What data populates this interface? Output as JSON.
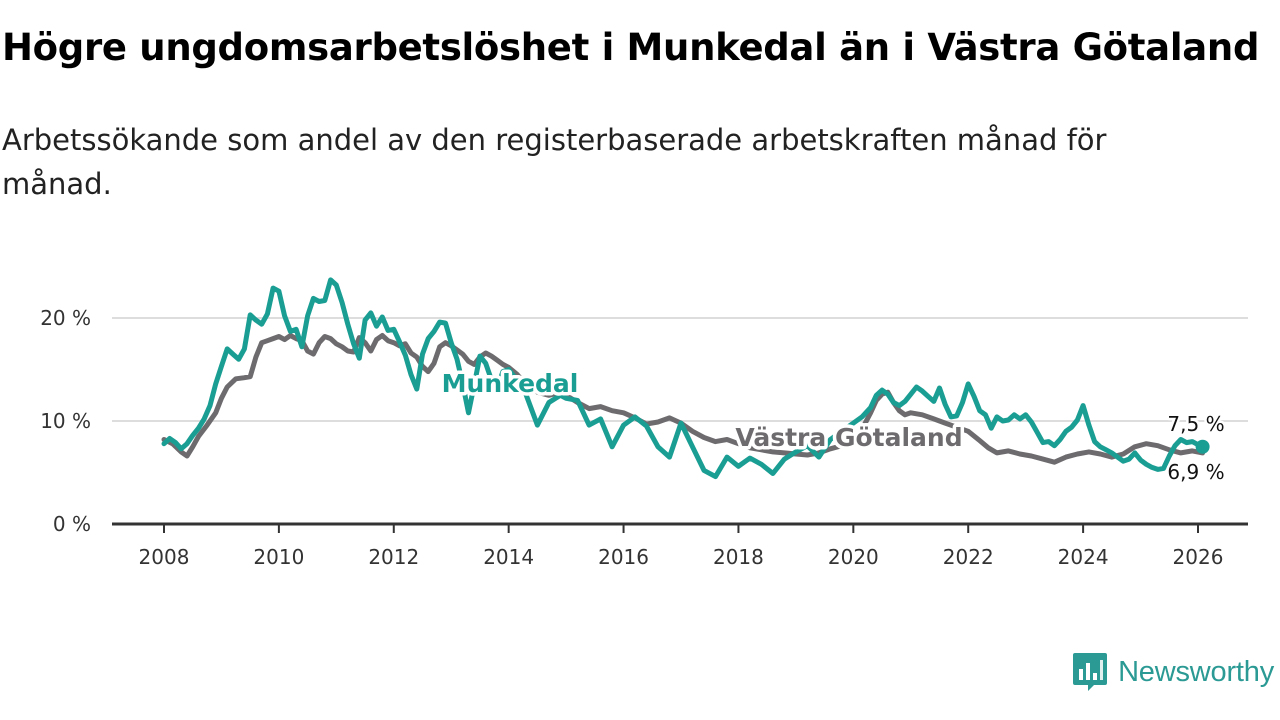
{
  "title": "Högre ungdomsarbetslöshet i Munkedal än i Västra Götaland",
  "subtitle": "Arbetssökande som andel av den registerbaserade arbetskraften månad för månad.",
  "brand": "Newsworthy",
  "colors": {
    "munkedal": "#1a9e94",
    "vastra_gotaland": "#6d6b6e",
    "grid": "#dddddd",
    "axis": "#333333"
  },
  "chart_data": {
    "type": "line",
    "title": "Högre ungdomsarbetslöshet i Munkedal än i Västra Götaland",
    "xlabel": "",
    "ylabel": "",
    "ylim": [
      0,
      23.5
    ],
    "xlim": [
      2007.4,
      2026.8
    ],
    "y_ticks": [
      {
        "value": 0,
        "label": "0 %"
      },
      {
        "value": 10,
        "label": "10 %"
      },
      {
        "value": 20,
        "label": "20 %"
      }
    ],
    "x_ticks": [
      {
        "value": 2008,
        "label": "2008"
      },
      {
        "value": 2010,
        "label": "2010"
      },
      {
        "value": 2012,
        "label": "2012"
      },
      {
        "value": 2014,
        "label": "2014"
      },
      {
        "value": 2016,
        "label": "2016"
      },
      {
        "value": 2018,
        "label": "2018"
      },
      {
        "value": 2020,
        "label": "2020"
      },
      {
        "value": 2022,
        "label": "2022"
      },
      {
        "value": 2024,
        "label": "2024"
      },
      {
        "value": 2026,
        "label": "2026"
      }
    ],
    "series": [
      {
        "name": "Västra Götaland",
        "label": "Västra Götaland",
        "end_label": "6,9 %",
        "x": [
          2008.0,
          2008.15,
          2008.3,
          2008.4,
          2008.5,
          2008.6,
          2008.75,
          2008.9,
          2009.0,
          2009.1,
          2009.25,
          2009.4,
          2009.5,
          2009.6,
          2009.7,
          2009.8,
          2009.9,
          2010.0,
          2010.1,
          2010.2,
          2010.3,
          2010.4,
          2010.5,
          2010.6,
          2010.7,
          2010.8,
          2010.9,
          2011.0,
          2011.1,
          2011.2,
          2011.3,
          2011.4,
          2011.5,
          2011.6,
          2011.7,
          2011.8,
          2011.9,
          2012.0,
          2012.1,
          2012.2,
          2012.3,
          2012.4,
          2012.5,
          2012.6,
          2012.7,
          2012.8,
          2012.9,
          2013.0,
          2013.1,
          2013.2,
          2013.3,
          2013.4,
          2013.5,
          2013.6,
          2013.7,
          2013.8,
          2013.9,
          2014.0,
          2014.15,
          2014.3,
          2014.5,
          2014.7,
          2014.9,
          2015.0,
          2015.2,
          2015.4,
          2015.6,
          2015.8,
          2016.0,
          2016.2,
          2016.4,
          2016.6,
          2016.8,
          2017.0,
          2017.2,
          2017.4,
          2017.6,
          2017.8,
          2018.0,
          2018.2,
          2018.4,
          2018.6,
          2018.8,
          2019.0,
          2019.2,
          2019.4,
          2019.6,
          2019.8,
          2020.0,
          2020.15,
          2020.3,
          2020.4,
          2020.5,
          2020.6,
          2020.7,
          2020.8,
          2020.9,
          2021.0,
          2021.2,
          2021.4,
          2021.6,
          2021.8,
          2022.0,
          2022.2,
          2022.35,
          2022.5,
          2022.7,
          2022.9,
          2023.1,
          2023.3,
          2023.5,
          2023.7,
          2023.9,
          2024.1,
          2024.3,
          2024.5,
          2024.7,
          2024.9,
          2025.1,
          2025.3,
          2025.5,
          2025.7,
          2025.9,
          2026.08
        ],
        "values": [
          8.2,
          7.8,
          7.0,
          6.6,
          7.5,
          8.5,
          9.6,
          10.8,
          12.2,
          13.3,
          14.1,
          14.2,
          14.3,
          16.2,
          17.6,
          17.8,
          18.0,
          18.2,
          17.9,
          18.3,
          18.0,
          17.8,
          16.8,
          16.5,
          17.6,
          18.2,
          18.0,
          17.5,
          17.2,
          16.8,
          16.7,
          18.1,
          17.6,
          16.8,
          17.9,
          18.3,
          17.8,
          17.6,
          17.3,
          17.5,
          16.6,
          16.2,
          15.3,
          14.8,
          15.6,
          17.2,
          17.6,
          17.3,
          16.9,
          16.5,
          15.8,
          15.5,
          16.2,
          16.6,
          16.3,
          15.9,
          15.5,
          15.2,
          14.5,
          13.5,
          12.8,
          12.5,
          12.8,
          12.5,
          11.8,
          11.2,
          11.4,
          11.0,
          10.8,
          10.3,
          9.7,
          9.9,
          10.3,
          9.8,
          9.0,
          8.4,
          8.0,
          8.2,
          7.8,
          7.4,
          7.2,
          7.0,
          6.9,
          6.8,
          6.7,
          6.9,
          7.3,
          7.6,
          8.0,
          9.2,
          10.8,
          12.0,
          12.6,
          12.8,
          11.8,
          11.0,
          10.6,
          10.8,
          10.6,
          10.2,
          9.8,
          9.4,
          9.0,
          8.1,
          7.4,
          6.9,
          7.1,
          6.8,
          6.6,
          6.3,
          6.0,
          6.5,
          6.8,
          7.0,
          6.8,
          6.5,
          6.8,
          7.5,
          7.8,
          7.6,
          7.2,
          6.9,
          7.1,
          6.9
        ]
      },
      {
        "name": "Munkedal",
        "label": "Munkedal",
        "end_label": "7,5 %",
        "x": [
          2008.0,
          2008.1,
          2008.2,
          2008.3,
          2008.4,
          2008.5,
          2008.6,
          2008.7,
          2008.8,
          2008.9,
          2009.0,
          2009.1,
          2009.2,
          2009.3,
          2009.4,
          2009.5,
          2009.6,
          2009.7,
          2009.8,
          2009.9,
          2010.0,
          2010.1,
          2010.2,
          2010.3,
          2010.4,
          2010.5,
          2010.6,
          2010.7,
          2010.8,
          2010.9,
          2011.0,
          2011.1,
          2011.2,
          2011.3,
          2011.4,
          2011.5,
          2011.6,
          2011.7,
          2011.8,
          2011.9,
          2012.0,
          2012.1,
          2012.2,
          2012.3,
          2012.4,
          2012.5,
          2012.6,
          2012.7,
          2012.8,
          2012.9,
          2013.0,
          2013.1,
          2013.2,
          2013.3,
          2013.4,
          2013.5,
          2013.6,
          2013.7,
          2013.8,
          2013.9,
          2014.0,
          2014.15,
          2014.3,
          2014.5,
          2014.7,
          2014.9,
          2015.0,
          2015.2,
          2015.4,
          2015.6,
          2015.8,
          2016.0,
          2016.2,
          2016.4,
          2016.6,
          2016.8,
          2017.0,
          2017.2,
          2017.4,
          2017.6,
          2017.8,
          2018.0,
          2018.2,
          2018.4,
          2018.6,
          2018.8,
          2019.0,
          2019.2,
          2019.4,
          2019.6,
          2019.8,
          2020.0,
          2020.15,
          2020.3,
          2020.4,
          2020.5,
          2020.6,
          2020.7,
          2020.8,
          2020.9,
          2021.0,
          2021.1,
          2021.2,
          2021.3,
          2021.4,
          2021.5,
          2021.6,
          2021.7,
          2021.8,
          2021.9,
          2022.0,
          2022.1,
          2022.2,
          2022.3,
          2022.4,
          2022.5,
          2022.6,
          2022.7,
          2022.8,
          2022.9,
          2023.0,
          2023.1,
          2023.2,
          2023.3,
          2023.4,
          2023.5,
          2023.6,
          2023.7,
          2023.8,
          2023.9,
          2024.0,
          2024.1,
          2024.2,
          2024.3,
          2024.4,
          2024.5,
          2024.6,
          2024.7,
          2024.8,
          2024.9,
          2025.0,
          2025.1,
          2025.2,
          2025.3,
          2025.4,
          2025.5,
          2025.6,
          2025.7,
          2025.8,
          2025.9,
          2026.0,
          2026.08
        ],
        "values": [
          7.8,
          8.3,
          7.9,
          7.3,
          7.8,
          8.6,
          9.3,
          10.2,
          11.5,
          13.6,
          15.3,
          17.0,
          16.5,
          16.0,
          17.0,
          20.3,
          19.8,
          19.4,
          20.4,
          22.9,
          22.6,
          20.2,
          18.7,
          18.9,
          17.2,
          20.2,
          21.9,
          21.6,
          21.7,
          23.7,
          23.2,
          21.5,
          19.4,
          17.5,
          16.1,
          19.8,
          20.5,
          19.2,
          20.1,
          18.8,
          18.9,
          17.7,
          16.4,
          14.5,
          13.1,
          16.5,
          18.0,
          18.7,
          19.6,
          19.5,
          17.6,
          16.0,
          13.6,
          10.8,
          13.5,
          16.3,
          15.6,
          14.0,
          13.2,
          14.8,
          15.0,
          13.9,
          12.6,
          9.6,
          11.8,
          12.5,
          12.2,
          12.0,
          9.6,
          10.2,
          7.5,
          9.6,
          10.4,
          9.5,
          7.5,
          6.5,
          9.8,
          7.5,
          5.2,
          4.6,
          6.5,
          5.6,
          6.4,
          5.8,
          4.9,
          6.3,
          7.0,
          7.6,
          6.5,
          8.2,
          9.0,
          9.8,
          10.4,
          11.3,
          12.5,
          13.0,
          12.6,
          11.8,
          11.5,
          11.9,
          12.6,
          13.3,
          12.9,
          12.4,
          11.9,
          13.2,
          11.6,
          10.4,
          10.5,
          11.8,
          13.6,
          12.4,
          11.0,
          10.6,
          9.3,
          10.4,
          10.0,
          10.1,
          10.6,
          10.2,
          10.6,
          9.9,
          8.9,
          7.9,
          8.0,
          7.6,
          8.2,
          9.0,
          9.4,
          10.1,
          11.5,
          9.6,
          8.0,
          7.5,
          7.2,
          6.9,
          6.5,
          6.1,
          6.3,
          6.9,
          6.2,
          5.8,
          5.5,
          5.3,
          5.4,
          6.6,
          7.6,
          8.2,
          7.9,
          8.0,
          7.7,
          7.5
        ]
      }
    ]
  }
}
